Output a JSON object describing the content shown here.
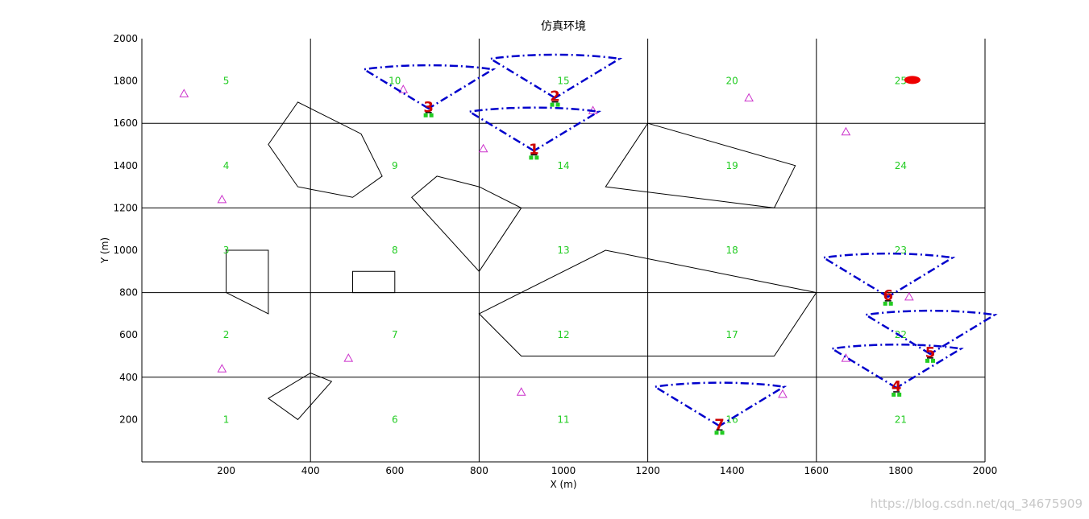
{
  "chart_data": {
    "type": "scatter",
    "title": "仿真环境",
    "xlabel": "X (m)",
    "ylabel": "Y (m)",
    "xlim": [
      0,
      2000
    ],
    "ylim": [
      0,
      2000
    ],
    "x_ticks": [
      200,
      400,
      600,
      800,
      1000,
      1200,
      1400,
      1600,
      1800,
      2000
    ],
    "y_ticks": [
      200,
      400,
      600,
      800,
      1000,
      1200,
      1400,
      1600,
      1800,
      2000
    ],
    "grid_lines_x": [
      400,
      800,
      1200,
      1600,
      2000
    ],
    "grid_lines_y": [
      400,
      800,
      1200,
      1600
    ],
    "cell_color": "#22cc22",
    "cells": [
      {
        "label": "1",
        "x": 200,
        "y": 200
      },
      {
        "label": "2",
        "x": 200,
        "y": 600
      },
      {
        "label": "3",
        "x": 200,
        "y": 1000
      },
      {
        "label": "4",
        "x": 200,
        "y": 1400
      },
      {
        "label": "5",
        "x": 200,
        "y": 1800
      },
      {
        "label": "6",
        "x": 600,
        "y": 200
      },
      {
        "label": "7",
        "x": 600,
        "y": 600
      },
      {
        "label": "8",
        "x": 600,
        "y": 1000
      },
      {
        "label": "9",
        "x": 600,
        "y": 1400
      },
      {
        "label": "10",
        "x": 600,
        "y": 1800
      },
      {
        "label": "11",
        "x": 1000,
        "y": 200
      },
      {
        "label": "12",
        "x": 1000,
        "y": 600
      },
      {
        "label": "13",
        "x": 1000,
        "y": 1000
      },
      {
        "label": "14",
        "x": 1000,
        "y": 1400
      },
      {
        "label": "15",
        "x": 1000,
        "y": 1800
      },
      {
        "label": "16",
        "x": 1400,
        "y": 200
      },
      {
        "label": "17",
        "x": 1400,
        "y": 600
      },
      {
        "label": "18",
        "x": 1400,
        "y": 1000
      },
      {
        "label": "19",
        "x": 1400,
        "y": 1400
      },
      {
        "label": "20",
        "x": 1400,
        "y": 1800
      },
      {
        "label": "21",
        "x": 1800,
        "y": 200
      },
      {
        "label": "22",
        "x": 1800,
        "y": 600
      },
      {
        "label": "23",
        "x": 1800,
        "y": 1000
      },
      {
        "label": "24",
        "x": 1800,
        "y": 1400
      },
      {
        "label": "25",
        "x": 1800,
        "y": 1800
      }
    ],
    "obstacles": [
      [
        [
          300,
          1500
        ],
        [
          370,
          1700
        ],
        [
          520,
          1550
        ],
        [
          570,
          1350
        ],
        [
          500,
          1250
        ],
        [
          370,
          1300
        ]
      ],
      [
        [
          800,
          1300
        ],
        [
          700,
          1350
        ],
        [
          640,
          1250
        ],
        [
          800,
          900
        ],
        [
          900,
          1200
        ]
      ],
      [
        [
          1200,
          1600
        ],
        [
          1550,
          1400
        ],
        [
          1500,
          1200
        ],
        [
          1100,
          1300
        ]
      ],
      [
        [
          200,
          1000
        ],
        [
          300,
          1000
        ],
        [
          300,
          700
        ],
        [
          200,
          800
        ]
      ],
      [
        [
          500,
          800
        ],
        [
          500,
          900
        ],
        [
          600,
          900
        ],
        [
          600,
          800
        ]
      ],
      [
        [
          800,
          700
        ],
        [
          1100,
          1000
        ],
        [
          1600,
          800
        ],
        [
          1500,
          500
        ],
        [
          900,
          500
        ]
      ],
      [
        [
          300,
          300
        ],
        [
          400,
          420
        ],
        [
          450,
          380
        ],
        [
          370,
          200
        ]
      ]
    ],
    "targets_color": "#cc33cc",
    "targets": [
      [
        100,
        1740
      ],
      [
        190,
        1240
      ],
      [
        190,
        440
      ],
      [
        490,
        490
      ],
      [
        620,
        1760
      ],
      [
        810,
        1480
      ],
      [
        900,
        330
      ],
      [
        1070,
        1660
      ],
      [
        1440,
        1720
      ],
      [
        1520,
        320
      ],
      [
        1670,
        490
      ],
      [
        1670,
        1560
      ],
      [
        1820,
        780
      ]
    ],
    "robot_color": "#cc0000",
    "sensor_color": "#0000cc",
    "robots": [
      {
        "label": "1",
        "x": 930,
        "y": 1470,
        "arc": {
          "cx": 930,
          "cy": 1470,
          "r": 240
        }
      },
      {
        "label": "2",
        "x": 980,
        "y": 1720,
        "arc": {
          "cx": 980,
          "cy": 1720,
          "r": 240
        }
      },
      {
        "label": "3",
        "x": 680,
        "y": 1670,
        "arc": {
          "cx": 680,
          "cy": 1670,
          "r": 240
        }
      },
      {
        "label": "4",
        "x": 1790,
        "y": 350,
        "arc": {
          "cx": 1790,
          "cy": 350,
          "r": 240
        }
      },
      {
        "label": "5",
        "x": 1870,
        "y": 510,
        "arc": {
          "cx": 1870,
          "cy": 510,
          "r": 240
        }
      },
      {
        "label": "6",
        "x": 1770,
        "y": 780,
        "arc": {
          "cx": 1770,
          "cy": 780,
          "r": 240
        }
      },
      {
        "label": "7",
        "x": 1370,
        "y": 170,
        "arc": {
          "cx": 1370,
          "cy": 170,
          "r": 240
        }
      }
    ],
    "goal_color": "#ee0000",
    "goal": {
      "x": 1820,
      "y": 1820
    }
  },
  "watermark": "https://blog.csdn.net/qq_34675909"
}
